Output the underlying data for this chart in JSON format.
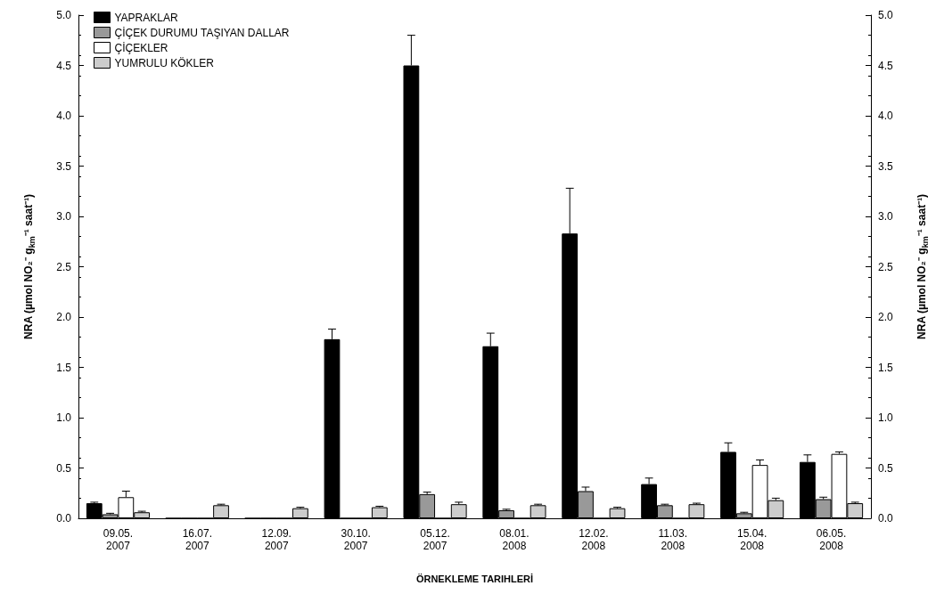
{
  "chart_data": {
    "type": "bar",
    "categories": [
      "09.05.\n2007",
      "16.07.\n2007",
      "12.09.\n2007",
      "30.10.\n2007",
      "05.12.\n2007",
      "08.01.\n2008",
      "12.02.\n2008",
      "11.03.\n2008",
      "15.04.\n2008",
      "06.05.\n2008"
    ],
    "series": [
      {
        "name": "YAPRAKLAR",
        "color": "#000000",
        "values": [
          0.15,
          0,
          0,
          1.78,
          4.5,
          1.71,
          2.83,
          0.34,
          0.66,
          0.56
        ],
        "errors": [
          [
            0.15,
            0.16
          ],
          [
            0,
            0
          ],
          [
            0,
            0
          ],
          [
            1.78,
            1.88
          ],
          [
            4.5,
            4.8
          ],
          [
            1.71,
            1.84
          ],
          [
            2.83,
            3.28
          ],
          [
            0.34,
            0.4
          ],
          [
            0.66,
            0.75
          ],
          [
            0.56,
            0.63
          ]
        ]
      },
      {
        "name": "ÇİÇEK DURUMU TAŞIYAN DALLAR",
        "color": "#999999",
        "values": [
          0.04,
          0,
          0,
          0,
          0.24,
          0.08,
          0.27,
          0.13,
          0.05,
          0.19
        ],
        "errors": [
          [
            0.04,
            0.05
          ],
          [
            0,
            0
          ],
          [
            0,
            0
          ],
          [
            0,
            0
          ],
          [
            0.24,
            0.26
          ],
          [
            0.08,
            0.09
          ],
          [
            0.27,
            0.31
          ],
          [
            0.13,
            0.14
          ],
          [
            0.05,
            0.06
          ],
          [
            0.19,
            0.21
          ]
        ]
      },
      {
        "name": "ÇİÇEKLER",
        "color": "#ffffff",
        "values": [
          0.21,
          0,
          0,
          0,
          0,
          0,
          0,
          0,
          0.53,
          0.64
        ],
        "errors": [
          [
            0.21,
            0.27
          ],
          [
            0,
            0
          ],
          [
            0,
            0
          ],
          [
            0,
            0
          ],
          [
            0,
            0
          ],
          [
            0,
            0
          ],
          [
            0,
            0
          ],
          [
            0,
            0
          ],
          [
            0.53,
            0.58
          ],
          [
            0.64,
            0.66
          ]
        ]
      },
      {
        "name": "YUMRULU KÖKLER",
        "color": "#cccccc",
        "values": [
          0.06,
          0.13,
          0.1,
          0.11,
          0.14,
          0.13,
          0.1,
          0.14,
          0.18,
          0.15
        ],
        "errors": [
          [
            0.06,
            0.07
          ],
          [
            0.13,
            0.14
          ],
          [
            0.1,
            0.11
          ],
          [
            0.11,
            0.12
          ],
          [
            0.14,
            0.16
          ],
          [
            0.13,
            0.14
          ],
          [
            0.1,
            0.11
          ],
          [
            0.14,
            0.15
          ],
          [
            0.18,
            0.2
          ],
          [
            0.15,
            0.16
          ]
        ]
      }
    ],
    "xlabel": "ÖRNEKLEME TARIHLERİ",
    "ylabel": "NRA (µmol NO₂⁻ g$_{km}$⁻¹ saat⁻¹)",
    "y2label": "NRA (µmol NO₂⁻ g$_{km}$⁻¹ saat⁻¹)",
    "ylim": [
      0,
      5
    ],
    "yticks": [
      {
        "value": 0,
        "label": "0.0"
      },
      {
        "value": 0.5,
        "label": "0.5"
      },
      {
        "value": 1,
        "label": "1.0"
      },
      {
        "value": 1.5,
        "label": "1.5"
      },
      {
        "value": 2,
        "label": "2.0"
      },
      {
        "value": 2.5,
        "label": "2.5"
      },
      {
        "value": 3,
        "label": "3.0"
      },
      {
        "value": 3.5,
        "label": "3.5"
      },
      {
        "value": 4,
        "label": "4.0"
      },
      {
        "value": 4.5,
        "label": "4.5"
      },
      {
        "value": 5,
        "label": "5.0"
      }
    ],
    "y2lim": [
      0,
      5
    ],
    "y2ticks": [
      {
        "value": 0,
        "label": "0.0"
      },
      {
        "value": 0.5,
        "label": "0.5"
      },
      {
        "value": 1,
        "label": "1.0"
      },
      {
        "value": 1.5,
        "label": "1.5"
      },
      {
        "value": 2,
        "label": "2.0"
      },
      {
        "value": 2.5,
        "label": "2.5"
      },
      {
        "value": 3,
        "label": "3.0"
      },
      {
        "value": 3.5,
        "label": "3.5"
      },
      {
        "value": 4,
        "label": "4.0"
      },
      {
        "value": 4.5,
        "label": "4.5"
      },
      {
        "value": 5,
        "label": "5.0"
      }
    ],
    "grid": false,
    "legend": "top left"
  }
}
